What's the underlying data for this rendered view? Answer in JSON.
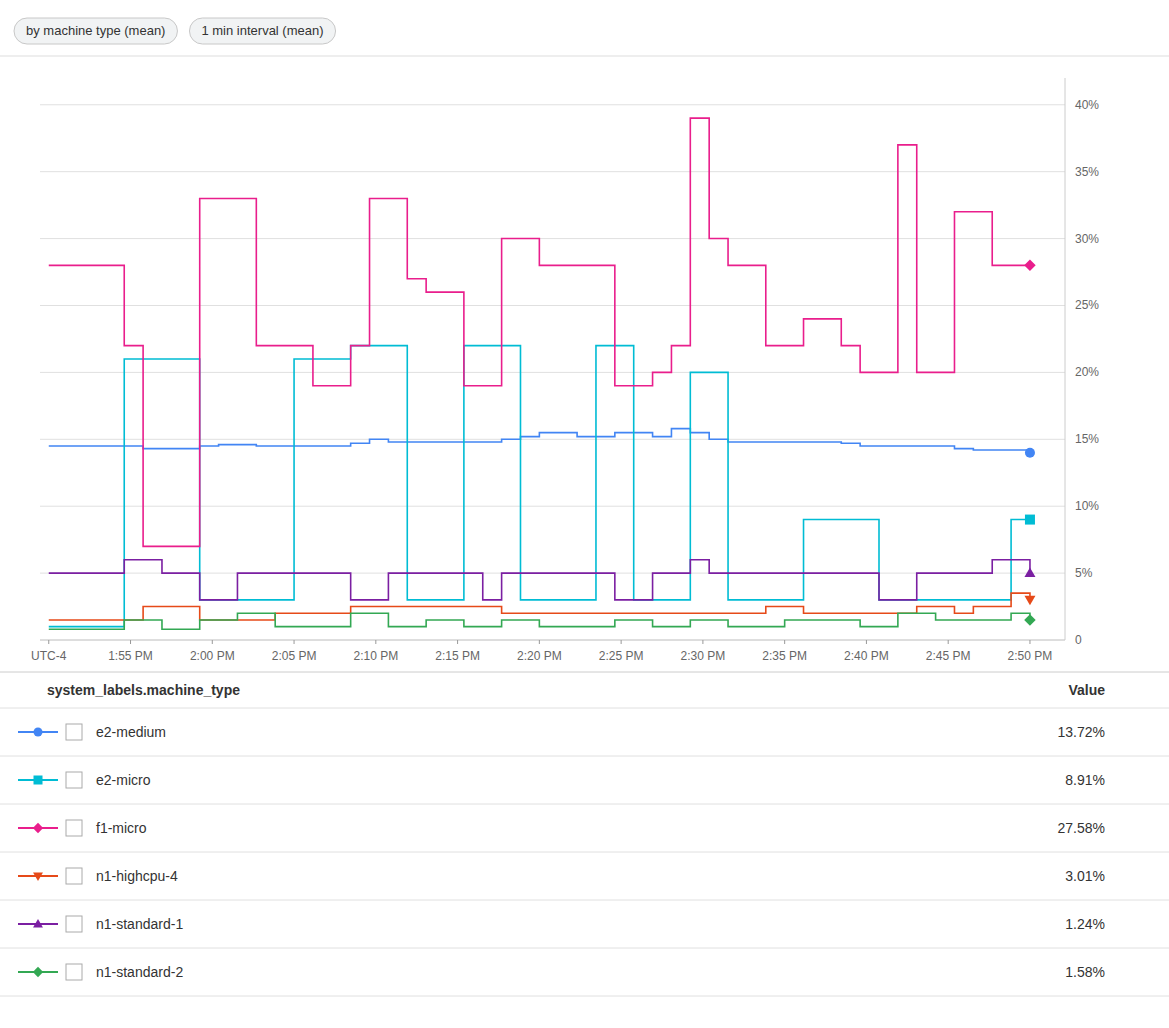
{
  "chart_data": {
    "type": "line",
    "line_style": "step",
    "tags": [
      "by machine type (mean)",
      "1 min interval (mean)"
    ],
    "legend_header": "system_labels.machine_type",
    "legend_column": "Value",
    "legend": "bottom",
    "grid": true,
    "x": [
      0,
      1.0769,
      2.1538,
      3.2308,
      4.3077,
      5.3846,
      6.4615,
      7.5385,
      8.6154,
      9.6923,
      10.7692,
      11.8462,
      12.9231,
      14,
      15.0769,
      16.1538,
      17.2308,
      18.3077,
      19.3846,
      20.4615,
      21.5385,
      22.6154,
      23.6923,
      24.7692,
      25.8462,
      26.9231,
      28,
      29.0769,
      30.1538,
      31.2308,
      32.3077,
      33.3846,
      34.4615,
      35.5385,
      36.6154,
      37.6923,
      38.7692,
      39.8462,
      40.9231,
      42,
      43.0769,
      44.1538,
      45.2308,
      46.3077,
      47.3846,
      48.4615,
      49.5385,
      50.6154,
      51.6923,
      52.7692,
      53.8462,
      54.9231,
      56
    ],
    "xlim": [
      -0.5,
      58
    ],
    "xticks": [
      {
        "value": 0,
        "label": "UTC-4"
      },
      {
        "value": 4.6667,
        "label": "1:55 PM"
      },
      {
        "value": 9.3333,
        "label": "2:00 PM"
      },
      {
        "value": 14,
        "label": "2:05 PM"
      },
      {
        "value": 18.6667,
        "label": "2:10 PM"
      },
      {
        "value": 23.3333,
        "label": "2:15 PM"
      },
      {
        "value": 28,
        "label": "2:20 PM"
      },
      {
        "value": 32.6667,
        "label": "2:25 PM"
      },
      {
        "value": 37.3333,
        "label": "2:30 PM"
      },
      {
        "value": 42,
        "label": "2:35 PM"
      },
      {
        "value": 46.6667,
        "label": "2:40 PM"
      },
      {
        "value": 51.3333,
        "label": "2:45 PM"
      },
      {
        "value": 56,
        "label": "2:50 PM"
      }
    ],
    "ylim": [
      0,
      42
    ],
    "yticks": [
      0,
      {
        "value": 5,
        "label": "5%"
      },
      {
        "value": 10,
        "label": "10%"
      },
      {
        "value": 15,
        "label": "15%"
      },
      {
        "value": 20,
        "label": "20%"
      },
      {
        "value": 25,
        "label": "25%"
      },
      {
        "value": 30,
        "label": "30%"
      },
      {
        "value": 35,
        "label": "35%"
      },
      {
        "value": 40,
        "label": "40%"
      }
    ],
    "series": [
      {
        "name": "e2-medium",
        "color": "#4285F4",
        "marker": "circle",
        "legend_value": "13.72%",
        "values": [
          14.5,
          14.5,
          14.5,
          14.5,
          14.5,
          14.3,
          14.3,
          14.3,
          14.5,
          14.6,
          14.6,
          14.5,
          14.5,
          14.5,
          14.5,
          14.5,
          14.7,
          15.0,
          14.8,
          14.8,
          14.8,
          14.8,
          14.8,
          14.8,
          15.0,
          15.2,
          15.5,
          15.5,
          15.2,
          15.2,
          15.5,
          15.5,
          15.2,
          15.8,
          15.5,
          15.0,
          14.8,
          14.8,
          14.8,
          14.8,
          14.8,
          14.8,
          14.7,
          14.5,
          14.5,
          14.5,
          14.5,
          14.5,
          14.3,
          14.2,
          14.2,
          14.2,
          14.0
        ]
      },
      {
        "name": "e2-micro",
        "color": "#00BCD4",
        "marker": "square",
        "legend_value": "8.91%",
        "values": [
          1,
          1,
          1,
          1,
          21,
          21,
          21,
          21,
          3,
          3,
          3,
          3,
          3,
          21,
          21,
          21,
          22,
          22,
          22,
          3,
          3,
          3,
          22,
          22,
          22,
          3,
          3,
          3,
          3,
          22,
          22,
          3,
          3,
          3,
          20,
          20,
          3,
          3,
          3,
          3,
          9,
          9,
          9,
          9,
          3,
          3,
          3,
          3,
          3,
          3,
          3,
          9,
          9
        ]
      },
      {
        "name": "f1-micro",
        "color": "#E91E8C",
        "marker": "diamond",
        "legend_value": "27.58%",
        "values": [
          28,
          28,
          28,
          28,
          22,
          7,
          7,
          7,
          33,
          33,
          33,
          22,
          22,
          22,
          19,
          19,
          22,
          33,
          33,
          27,
          26,
          26,
          19,
          19,
          30,
          30,
          28,
          28,
          28,
          28,
          19,
          19,
          20,
          22,
          39,
          30,
          28,
          28,
          22,
          22,
          24,
          24,
          22,
          20,
          20,
          37,
          20,
          20,
          32,
          32,
          28,
          28,
          28
        ]
      },
      {
        "name": "n1-highcpu-4",
        "color": "#E64A19",
        "marker": "triangle-down",
        "legend_value": "3.01%",
        "values": [
          1.5,
          1.5,
          1.5,
          1.5,
          1.5,
          2.5,
          2.5,
          2.5,
          1.5,
          1.5,
          1.5,
          1.5,
          2.0,
          2.0,
          2.0,
          2.0,
          2.5,
          2.5,
          2.5,
          2.5,
          2.5,
          2.5,
          2.5,
          2.5,
          2.0,
          2.0,
          2.0,
          2.0,
          2.0,
          2.0,
          2.0,
          2.0,
          2.0,
          2.0,
          2.0,
          2.0,
          2.0,
          2.0,
          2.5,
          2.5,
          2.0,
          2.0,
          2.0,
          2.0,
          2.0,
          2.0,
          2.5,
          2.5,
          2.0,
          2.5,
          2.5,
          3.5,
          3.0
        ]
      },
      {
        "name": "n1-standard-1",
        "color": "#7B1FA2",
        "marker": "triangle-up",
        "legend_value": "1.24%",
        "values": [
          5,
          5,
          5,
          5,
          6,
          6,
          5,
          5,
          3,
          3,
          5,
          5,
          5,
          5,
          5,
          5,
          3,
          3,
          5,
          5,
          5,
          5,
          5,
          3,
          5,
          5,
          5,
          5,
          5,
          5,
          3,
          3,
          5,
          5,
          6,
          5,
          5,
          5,
          5,
          5,
          5,
          5,
          5,
          5,
          3,
          3,
          5,
          5,
          5,
          5,
          6,
          6,
          5
        ]
      },
      {
        "name": "n1-standard-2",
        "color": "#33A853",
        "marker": "diamond",
        "legend_value": "1.58%",
        "values": [
          0.8,
          0.8,
          0.8,
          0.8,
          1.5,
          1.5,
          0.8,
          0.8,
          1.5,
          1.5,
          2.0,
          2.0,
          1.0,
          1.0,
          1.0,
          1.0,
          2.0,
          2.0,
          1.0,
          1.0,
          1.5,
          1.5,
          1.0,
          1.0,
          1.5,
          1.5,
          1.0,
          1.0,
          1.0,
          1.0,
          1.5,
          1.5,
          1.0,
          1.0,
          1.5,
          1.5,
          1.0,
          1.0,
          1.0,
          1.5,
          1.5,
          1.5,
          1.5,
          1.0,
          1.0,
          2.0,
          2.0,
          1.5,
          1.5,
          1.5,
          1.5,
          2.0,
          1.5
        ]
      }
    ]
  }
}
